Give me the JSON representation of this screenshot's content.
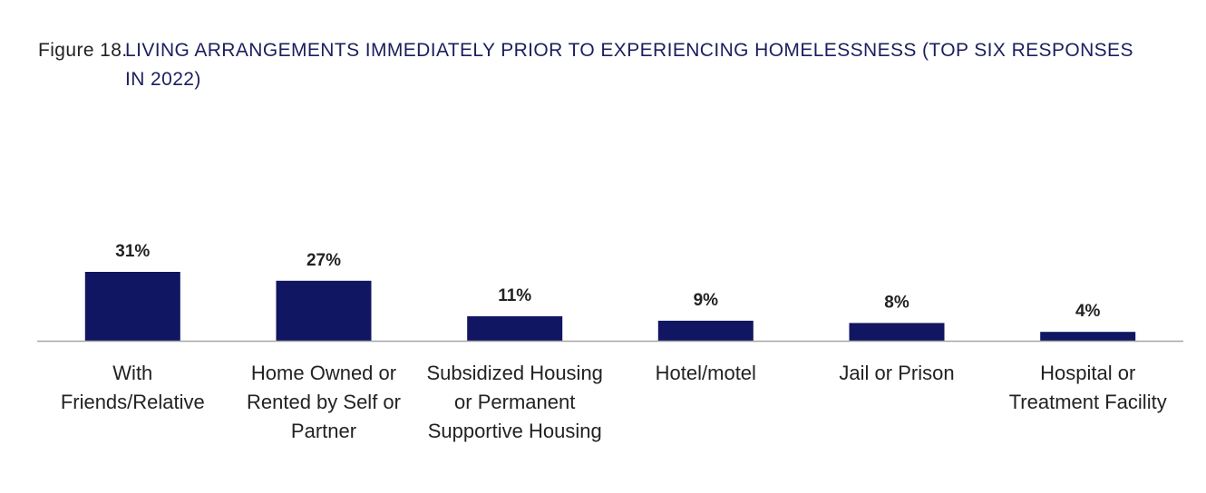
{
  "figure": {
    "label": "Figure 18.",
    "title": "LIVING ARRANGEMENTS IMMEDIATELY PRIOR TO EXPERIENCING HOMELESSNESS (TOP SIX RESPONSES IN 2022)"
  },
  "colors": {
    "bar": "#101661",
    "axis": "#a6a6a6",
    "title": "#1b1f5e",
    "text": "#222222"
  },
  "chart_data": {
    "type": "bar",
    "title": "LIVING ARRANGEMENTS IMMEDIATELY PRIOR TO EXPERIENCING HOMELESSNESS (TOP SIX RESPONSES IN 2022)",
    "categories": [
      [
        "With",
        "Friends/Relative"
      ],
      [
        "Home Owned or",
        "Rented by Self or",
        "Partner"
      ],
      [
        "Subsidized Housing",
        "or Permanent",
        "Supportive Housing"
      ],
      [
        "Hotel/motel"
      ],
      [
        "Jail or Prison"
      ],
      [
        "Hospital or",
        "Treatment Facility"
      ]
    ],
    "values": [
      31,
      27,
      11,
      9,
      8,
      4
    ],
    "data_labels": [
      "31%",
      "27%",
      "11%",
      "9%",
      "8%",
      "4%"
    ],
    "unit": "%",
    "xlabel": "",
    "ylabel": "",
    "ylim": [
      0,
      31
    ],
    "grid": false,
    "legend": "none"
  }
}
